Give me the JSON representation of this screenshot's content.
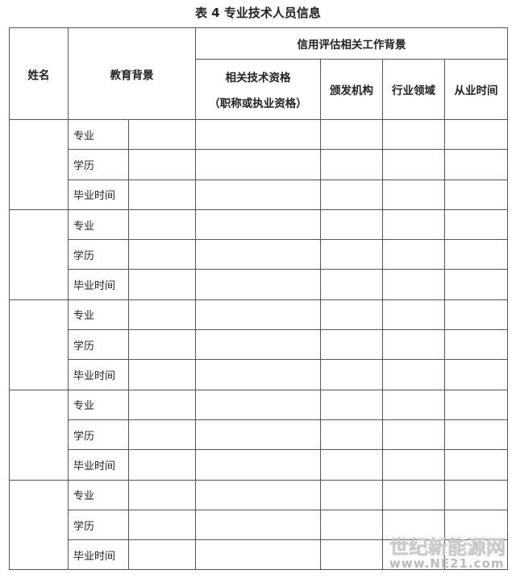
{
  "title": "表 4  专业技术人员信息",
  "headers": {
    "name": "姓名",
    "education": "教育背景",
    "work_group": "信用评估相关工作背景",
    "qualification": "相关技术资格",
    "qualification_note": "（职称或执业资格）",
    "issuer": "颁发机构",
    "industry": "行业领域",
    "years": "从业时间"
  },
  "row_labels": [
    "专业",
    "学历",
    "毕业时间"
  ],
  "person_blocks": 5,
  "watermark": {
    "line1": "世纪新能源网",
    "line2": "www.NE21.com"
  }
}
